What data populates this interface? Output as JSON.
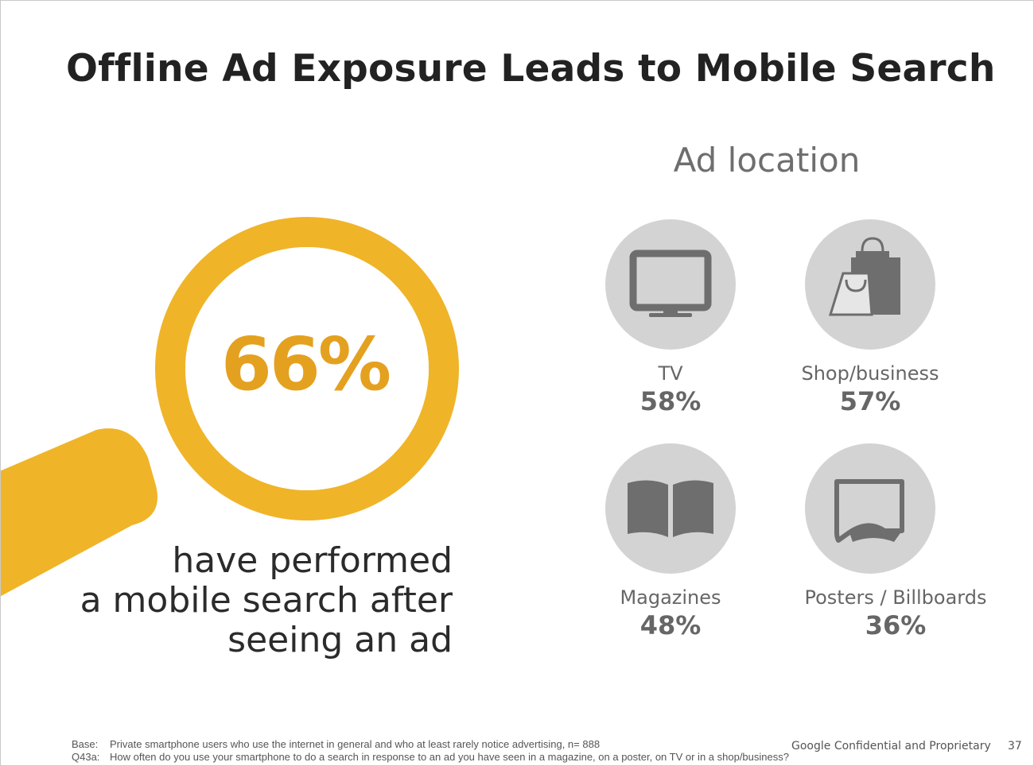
{
  "slide": {
    "title": "Offline Ad Exposure Leads to Mobile Search",
    "headline_stat": "66%",
    "headline_caption": [
      "have performed",
      "a mobile search after",
      "seeing an ad"
    ],
    "accent_color": "#F0B429",
    "accent_text_color": "#E4A11F",
    "icon_circle_color": "#D3D3D3",
    "icon_color": "#6E6E6E"
  },
  "ad_location": {
    "heading": "Ad location",
    "items": [
      {
        "label": "TV",
        "value": "58%",
        "icon": "tv-icon"
      },
      {
        "label": "Shop/business",
        "value": "57%",
        "icon": "shopping-bags-icon"
      },
      {
        "label": "Magazines",
        "value": "48%",
        "icon": "open-book-icon"
      },
      {
        "label": "Posters / Billboards",
        "value": "36%",
        "icon": "poster-icon"
      }
    ]
  },
  "footer": {
    "base_key": "Base:",
    "base_text": "Private smartphone users who use the internet in general and who at least rarely notice advertising, n= 888",
    "question_key": "Q43a:",
    "question_text": "How often do you use your smartphone to do a search in response to an ad you have seen in a magazine, on a poster, on TV or in a shop/business?",
    "confidential": "Google Confidential and Proprietary",
    "page_number": "37"
  }
}
